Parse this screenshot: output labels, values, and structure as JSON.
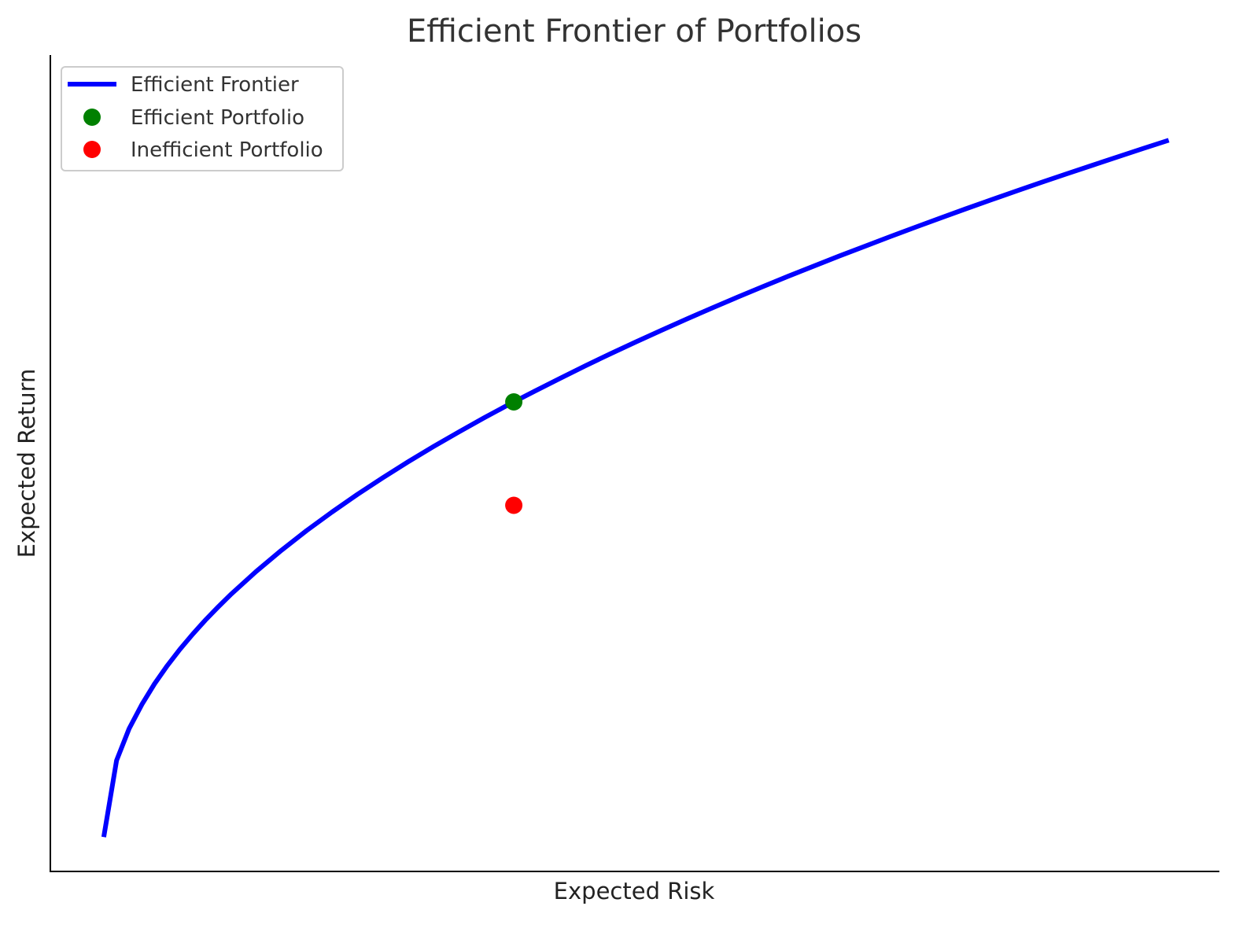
{
  "chart_data": {
    "type": "line",
    "title": "Efficient Frontier of Portfolios",
    "xlabel": "Expected Risk",
    "ylabel": "Expected Return",
    "xlim": [
      0.037,
      0.54
    ],
    "ylim": [
      0,
      1.05
    ],
    "x_ticks_shown": false,
    "y_ticks_shown": false,
    "grid": false,
    "legend_position": "upper-left",
    "series": [
      {
        "name": "Efficient Frontier",
        "kind": "line",
        "color": "#0000ff",
        "x": [
          0.06,
          0.0655,
          0.0709,
          0.0764,
          0.0818,
          0.0873,
          0.0927,
          0.0982,
          0.1036,
          0.1091,
          0.1145,
          0.1255,
          0.1364,
          0.1473,
          0.1582,
          0.1691,
          0.18,
          0.1909,
          0.2018,
          0.2127,
          0.2236,
          0.2345,
          0.2455,
          0.2564,
          0.2673,
          0.2782,
          0.2891,
          0.3,
          0.3109,
          0.3218,
          0.3327,
          0.3436,
          0.3545,
          0.3655,
          0.3764,
          0.3873,
          0.3982,
          0.4091,
          0.42,
          0.4309,
          0.4418,
          0.4527,
          0.4636,
          0.4745,
          0.4855,
          0.4964,
          0.5073,
          0.5182
        ],
        "y": [
          0.0442,
          0.1428,
          0.1836,
          0.2149,
          0.2413,
          0.2646,
          0.2856,
          0.305,
          0.323,
          0.3399,
          0.3559,
          0.3857,
          0.413,
          0.4385,
          0.4623,
          0.4849,
          0.5063,
          0.5268,
          0.5464,
          0.5652,
          0.5834,
          0.601,
          0.6179,
          0.6344,
          0.6505,
          0.6661,
          0.6813,
          0.6961,
          0.7106,
          0.7248,
          0.7386,
          0.7522,
          0.7655,
          0.7786,
          0.7914,
          0.8039,
          0.8163,
          0.8285,
          0.8404,
          0.8522,
          0.8638,
          0.8752,
          0.8864,
          0.8975,
          0.9084,
          0.9192,
          0.9299,
          0.9404
        ]
      },
      {
        "name": "Efficient Portfolio",
        "kind": "point",
        "color": "#008000",
        "x": [
          0.2364
        ],
        "y": [
          0.6039
        ]
      },
      {
        "name": "Inefficient Portfolio",
        "kind": "point",
        "color": "#ff0000",
        "x": [
          0.2364
        ],
        "y": [
          0.4709
        ]
      }
    ]
  }
}
